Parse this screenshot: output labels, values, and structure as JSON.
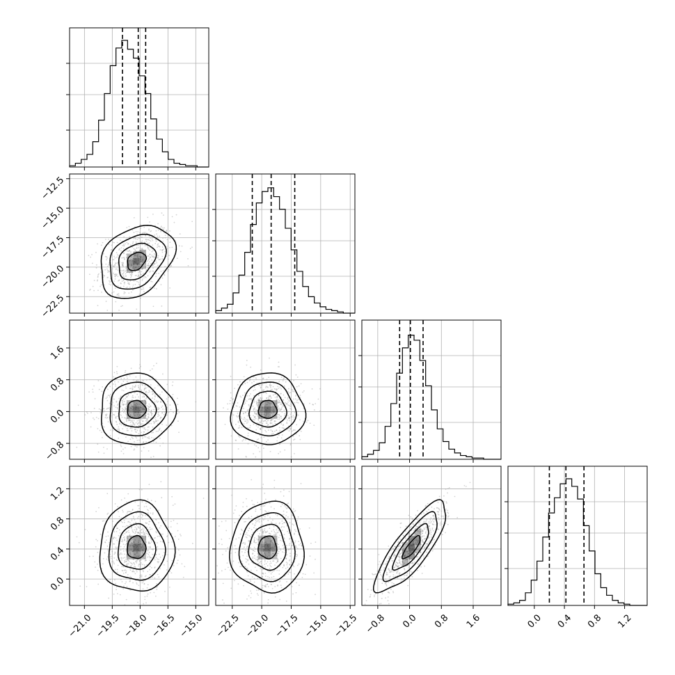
{
  "chart_data": {
    "type": "corner",
    "variables": 4,
    "params": [
      {
        "range": [
          -21.8,
          -14.3
        ],
        "ticks": [
          -21.0,
          -19.5,
          -18.0,
          -16.5,
          -15.0
        ],
        "tick_labels": [
          "−21.0",
          "−19.5",
          "−18.0",
          "−16.5",
          "−15.0"
        ],
        "quantiles": [
          -18.95,
          -18.1,
          -17.7
        ],
        "hist": [
          0.01,
          0.03,
          0.06,
          0.1,
          0.2,
          0.37,
          0.58,
          0.8,
          0.94,
          1.0,
          0.93,
          0.86,
          0.72,
          0.58,
          0.38,
          0.22,
          0.12,
          0.06,
          0.03,
          0.02,
          0.01,
          0.01,
          0.0,
          0.0
        ]
      },
      {
        "range": [
          -23.9,
          -12.1
        ],
        "ticks": [
          -22.5,
          -20.0,
          -17.5,
          -15.0,
          -12.5
        ],
        "tick_labels": [
          "−22.5",
          "−20.0",
          "−17.5",
          "−15.0",
          "−12.5"
        ],
        "quantiles": [
          -20.8,
          -19.2,
          -17.2
        ],
        "hist": [
          0.02,
          0.04,
          0.07,
          0.16,
          0.3,
          0.48,
          0.7,
          0.87,
          0.96,
          0.99,
          0.92,
          0.82,
          0.67,
          0.5,
          0.33,
          0.21,
          0.13,
          0.08,
          0.05,
          0.03,
          0.02,
          0.01,
          0.0,
          0.0
        ]
      },
      {
        "range": [
          -1.2,
          2.3
        ],
        "ticks": [
          -0.8,
          0.0,
          0.8,
          1.6
        ],
        "tick_labels": [
          "−0.8",
          "0.0",
          "0.8",
          "1.6"
        ],
        "quantiles": [
          -0.25,
          0.02,
          0.34
        ],
        "hist": [
          0.02,
          0.04,
          0.07,
          0.13,
          0.26,
          0.44,
          0.68,
          0.88,
          0.98,
          0.94,
          0.78,
          0.58,
          0.39,
          0.24,
          0.14,
          0.08,
          0.05,
          0.03,
          0.02,
          0.01,
          0.01,
          0.0,
          0.0,
          0.0
        ]
      },
      {
        "range": [
          -0.35,
          1.5
        ],
        "ticks": [
          0.0,
          0.4,
          0.8,
          1.2
        ],
        "tick_labels": [
          "0.0",
          "0.4",
          "0.8",
          "1.2"
        ],
        "quantiles": [
          0.2,
          0.42,
          0.66
        ],
        "hist": [
          0.01,
          0.02,
          0.04,
          0.1,
          0.2,
          0.35,
          0.54,
          0.73,
          0.85,
          0.96,
          1.0,
          0.94,
          0.84,
          0.63,
          0.43,
          0.25,
          0.14,
          0.08,
          0.04,
          0.02,
          0.01,
          0.0,
          0.0,
          0.0
        ]
      }
    ],
    "correlations": [
      [
        1.0,
        0.3,
        0.0,
        0.0
      ],
      [
        0.3,
        1.0,
        0.0,
        0.0
      ],
      [
        0.0,
        0.0,
        1.0,
        0.82
      ],
      [
        0.0,
        0.0,
        0.82,
        1.0
      ]
    ],
    "sample_spread": [
      1.0,
      1.55,
      0.45,
      0.3
    ],
    "sample_center": [
      -18.2,
      -19.5,
      0.05,
      0.42
    ],
    "grid": true,
    "histogram_style": "step",
    "quantile_line_style": "dashed",
    "contour_color": "#000000",
    "point_color": "#9e9e9e",
    "density_fill_color": "#000000"
  }
}
